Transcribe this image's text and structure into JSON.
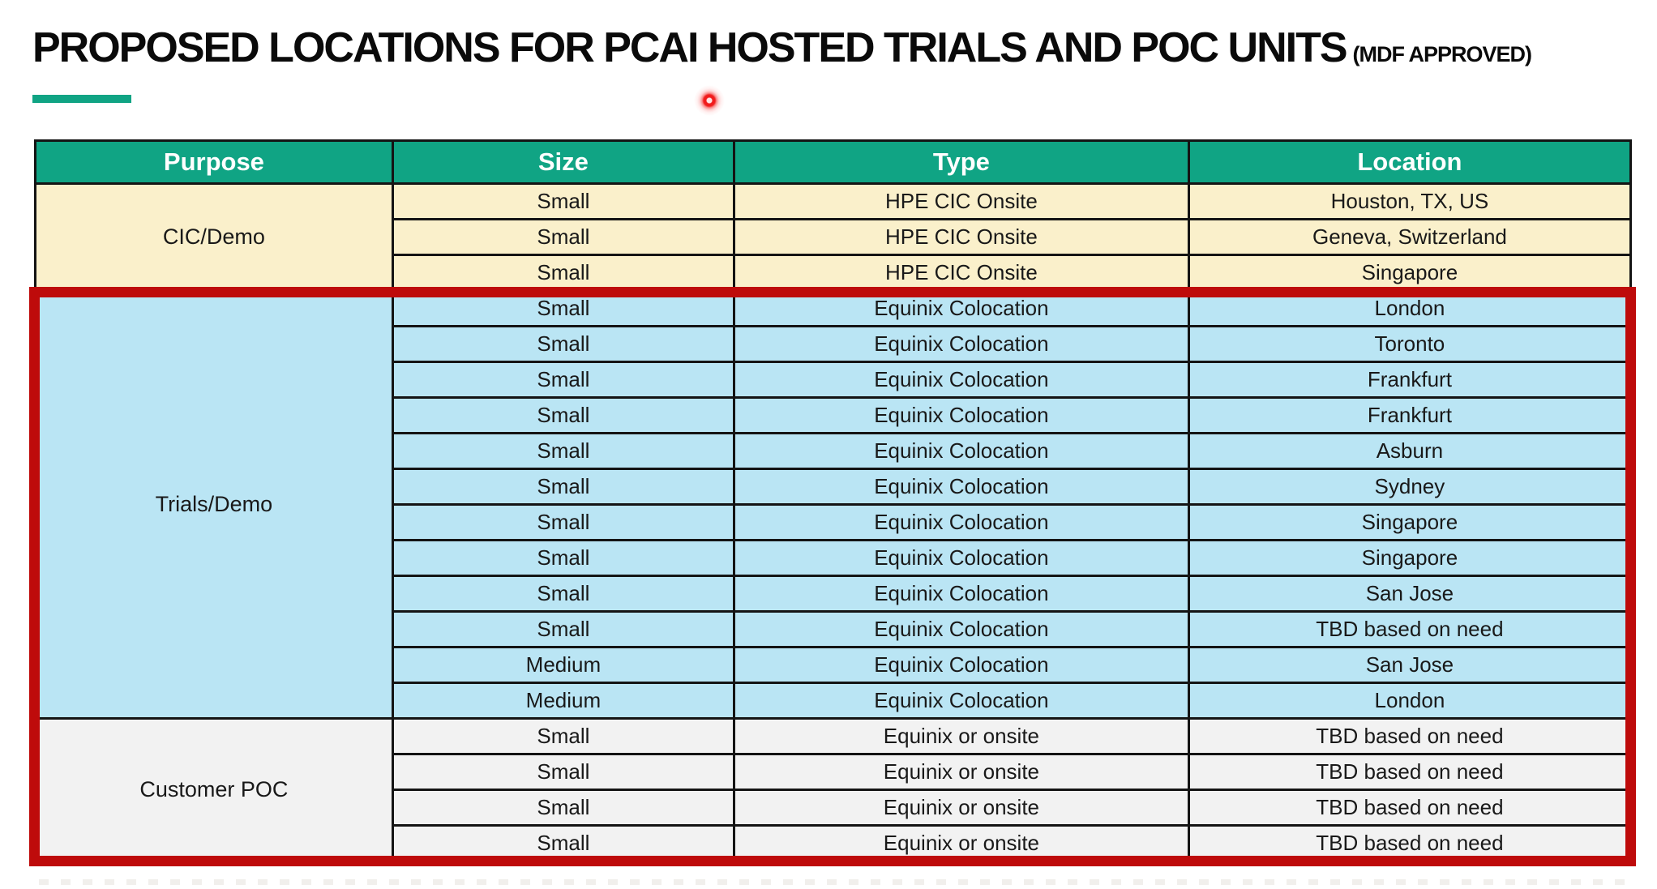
{
  "title": {
    "main": "PROPOSED LOCATIONS FOR PCAI HOSTED TRIALS AND POC UNITS",
    "suffix": "(MDF APPROVED)"
  },
  "table": {
    "headers": [
      "Purpose",
      "Size",
      "Type",
      "Location"
    ],
    "sections": [
      {
        "purpose": "CIC/Demo",
        "bg": "#FAF0CB",
        "rows": [
          [
            "Small",
            "HPE CIC Onsite",
            "Houston, TX, US"
          ],
          [
            "Small",
            "HPE CIC Onsite",
            "Geneva, Switzerland"
          ],
          [
            "Small",
            "HPE CIC Onsite",
            "Singapore"
          ]
        ]
      },
      {
        "purpose": "Trials/Demo",
        "bg": "#BAE5F4",
        "rows": [
          [
            "Small",
            "Equinix Colocation",
            "London"
          ],
          [
            "Small",
            "Equinix Colocation",
            "Toronto"
          ],
          [
            "Small",
            "Equinix Colocation",
            "Frankfurt"
          ],
          [
            "Small",
            "Equinix Colocation",
            "Frankfurt"
          ],
          [
            "Small",
            "Equinix Colocation",
            "Asburn"
          ],
          [
            "Small",
            "Equinix Colocation",
            "Sydney"
          ],
          [
            "Small",
            "Equinix Colocation",
            "Singapore"
          ],
          [
            "Small",
            "Equinix Colocation",
            "Singapore"
          ],
          [
            "Small",
            "Equinix Colocation",
            "San Jose"
          ],
          [
            "Small",
            "Equinix Colocation",
            "TBD based on need"
          ],
          [
            "Medium",
            "Equinix Colocation",
            "San Jose"
          ],
          [
            "Medium",
            "Equinix Colocation",
            "London"
          ]
        ]
      },
      {
        "purpose": "Customer POC",
        "bg": "#F2F2F2",
        "rows": [
          [
            "Small",
            "Equinix or onsite",
            "TBD based on need"
          ],
          [
            "Small",
            "Equinix or onsite",
            "TBD based on need"
          ],
          [
            "Small",
            "Equinix or onsite",
            "TBD based on need"
          ],
          [
            "Small",
            "Equinix or onsite",
            "TBD based on need"
          ]
        ]
      }
    ]
  },
  "colors": {
    "header_bg": "#10A484",
    "header_text": "#FFFFFF",
    "cic_demo_bg": "#FAF0CB",
    "trials_demo_bg": "#BAE5F4",
    "customer_poc_bg": "#F2F2F2",
    "highlight_border": "#BE0B0B",
    "title_underline": "#10A484",
    "laser_pointer": "#F11C1C"
  }
}
